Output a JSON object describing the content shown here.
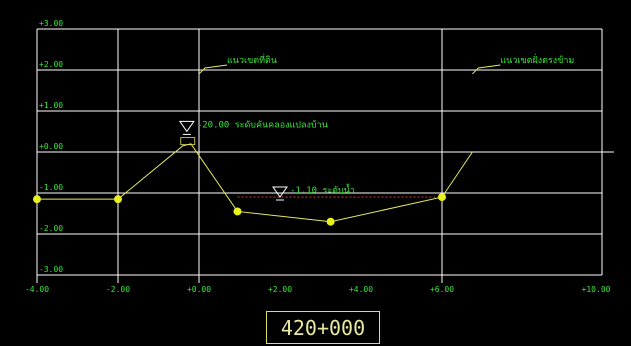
{
  "section": {
    "station": "420+000",
    "colors": {
      "background": "#000000",
      "grid": "#ffffff",
      "labels": "#38e838",
      "profile": "#e8e860",
      "points": "#e8f020",
      "water_line": "#e03030"
    }
  },
  "chart_data": {
    "type": "line",
    "x_ticks": [
      "-4.00",
      "-2.00",
      "+0.00",
      "+2.00",
      "+4.00",
      "+6.00",
      "+10.00"
    ],
    "y_ticks": [
      "+3.00",
      "+2.00",
      "+1.00",
      "+0.00",
      "-1.00",
      "-2.00",
      "-3.00"
    ],
    "grid": true,
    "ground_profile": {
      "x": [
        -4.0,
        -2.0,
        -0.4,
        -0.2,
        0.95,
        3.25,
        6.0,
        6.75
      ],
      "y": [
        -1.15,
        -1.15,
        0.15,
        0.2,
        -1.45,
        -1.7,
        -1.1,
        0.0
      ],
      "marked_points_index": [
        0,
        1,
        4,
        5,
        6
      ]
    },
    "water_level": {
      "x_from": 0.95,
      "x_to": 6.0,
      "y": -1.1
    },
    "annotations": [
      {
        "id": "bank_left",
        "text": "แนวเขตที่ดิน",
        "x": 0.0,
        "y": 2.05
      },
      {
        "id": "bank_right",
        "text": "แนวเขตฝั่งตรงข้าม",
        "x": 6.75,
        "y": 2.05
      },
      {
        "id": "embankment",
        "text": "-20.00  ระดับคันคลองแปลงบ้าน",
        "x": -0.3,
        "y": 0.6
      },
      {
        "id": "water",
        "text": "-1.10  ระดับน้ำ",
        "x": 2.0,
        "y": -1.0
      }
    ]
  }
}
